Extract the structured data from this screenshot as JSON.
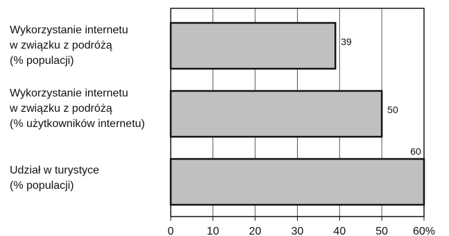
{
  "chart_data": {
    "type": "bar",
    "orientation": "horizontal",
    "categories": [
      [
        "Wykorzystanie internetu",
        "w związku z podróżą",
        "(% populacji)"
      ],
      [
        "Wykorzystanie internetu",
        "w związku z podróżą",
        "(% użytkowników internetu)"
      ],
      [
        "Udział w turystyce",
        "(% populacji)"
      ]
    ],
    "values": [
      39,
      50,
      60
    ],
    "data_labels": [
      "39",
      "50",
      "60"
    ],
    "xlim": [
      0,
      60
    ],
    "xticks": [
      0,
      10,
      20,
      30,
      40,
      50,
      60
    ],
    "xtick_labels": [
      "0",
      "10",
      "20",
      "30",
      "40",
      "50",
      "60%"
    ],
    "grid": "vertical",
    "bar_color": "#c0c0c0",
    "bar_edge_color": "#111111"
  }
}
